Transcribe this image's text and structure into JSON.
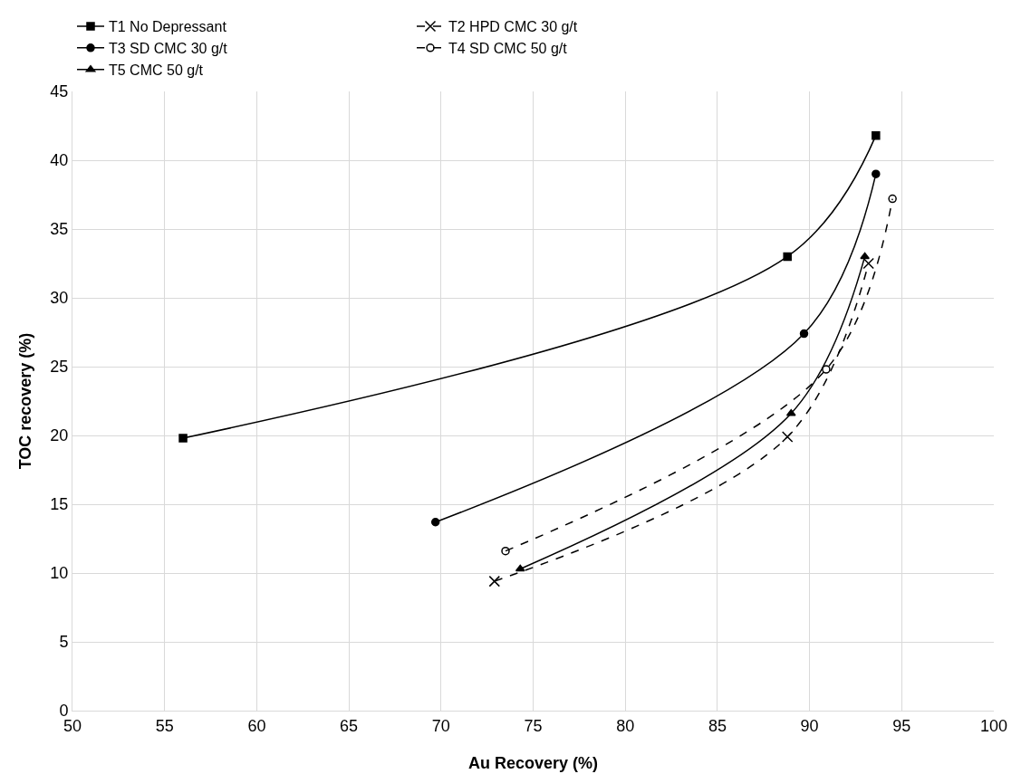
{
  "chart_data": {
    "type": "line",
    "xlabel": "Au Recovery (%)",
    "ylabel": "TOC recovery (%)",
    "xlim": [
      50,
      100
    ],
    "xticks": [
      50,
      55,
      60,
      65,
      70,
      75,
      80,
      85,
      90,
      95,
      100
    ],
    "ylim": [
      0,
      45
    ],
    "yticks": [
      0,
      5,
      10,
      15,
      20,
      25,
      30,
      35,
      40,
      45
    ],
    "grid": true,
    "legend": "top",
    "series": [
      {
        "name": "T1 No Depressant",
        "color": "#000000",
        "marker": "square",
        "line_style": "solid",
        "x": [
          56,
          88.8,
          93.6
        ],
        "values": [
          19.8,
          33,
          41.8
        ]
      },
      {
        "name": "T2 HPD CMC 30 g/t",
        "color": "#000000",
        "marker": "cross",
        "line_style": "dashed",
        "x": [
          72.9,
          88.8,
          93.2
        ],
        "values": [
          9.4,
          19.9,
          32.5
        ]
      },
      {
        "name": "T3 SD CMC 30 g/t",
        "color": "#000000",
        "marker": "circle",
        "line_style": "solid",
        "x": [
          69.7,
          89.7,
          93.6
        ],
        "values": [
          13.7,
          27.4,
          39
        ]
      },
      {
        "name": "T4 SD CMC 50 g/t",
        "color": "#000000",
        "marker": "circle-open",
        "line_style": "dashed",
        "x": [
          73.5,
          90.9,
          94.5
        ],
        "values": [
          11.6,
          24.8,
          37.2
        ]
      },
      {
        "name": "T5 CMC 50 g/t",
        "color": "#000000",
        "marker": "triangle",
        "line_style": "solid",
        "x": [
          74.3,
          89,
          93
        ],
        "values": [
          10.3,
          21.6,
          33
        ]
      }
    ]
  }
}
